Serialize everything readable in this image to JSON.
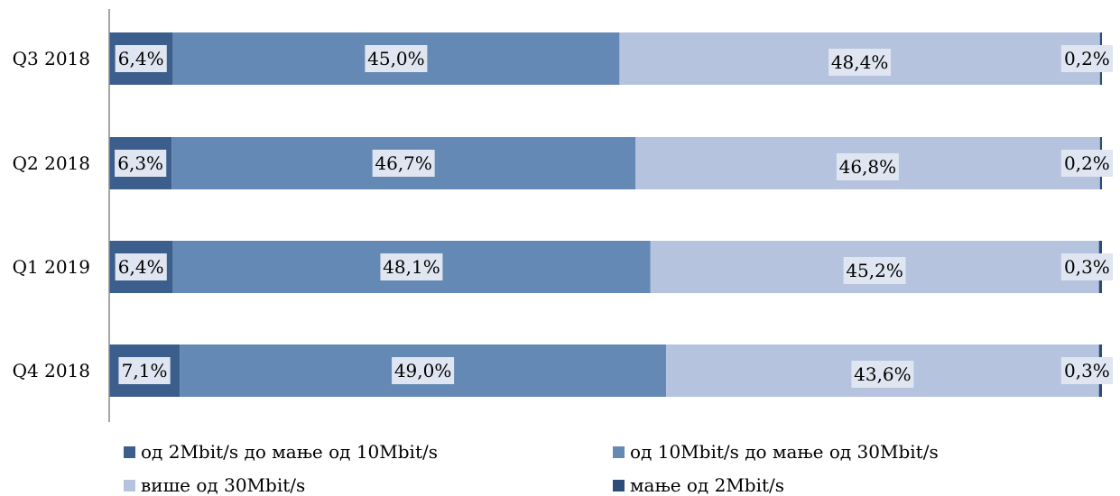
{
  "chart_data": {
    "type": "bar",
    "orientation": "horizontal",
    "stacked": "percent",
    "categories": [
      "Q3 2018",
      "Q2 2018",
      "Q1 2019",
      "Q4 2018"
    ],
    "series": [
      {
        "name": "од 2Mbit/s до мање од 10Mbit/s",
        "color": "#3b5e8c",
        "values": [
          6.4,
          6.3,
          6.4,
          7.1
        ],
        "labels": [
          "6,4%",
          "6,3%",
          "6,4%",
          "7,1%"
        ]
      },
      {
        "name": "од 10Mbit/s до мање од 30Mbit/s",
        "color": "#6589b5",
        "values": [
          45.0,
          46.7,
          48.1,
          49.0
        ],
        "labels": [
          "45,0%",
          "46,7%",
          "48,1%",
          "49,0%"
        ]
      },
      {
        "name": "више од 30Mbit/s",
        "color": "#b5c3de",
        "values": [
          48.4,
          46.8,
          45.2,
          43.6
        ],
        "labels": [
          "48,4%",
          "46,8%",
          "45,2%",
          "43,6%"
        ]
      },
      {
        "name": "мање од 2Mbit/s",
        "color": "#2c4d7a",
        "values": [
          0.2,
          0.2,
          0.3,
          0.3
        ],
        "labels": [
          "0,2%",
          "0,2%",
          "0,3%",
          "0,3%"
        ]
      }
    ],
    "legend_position": "bottom",
    "grid": false
  }
}
